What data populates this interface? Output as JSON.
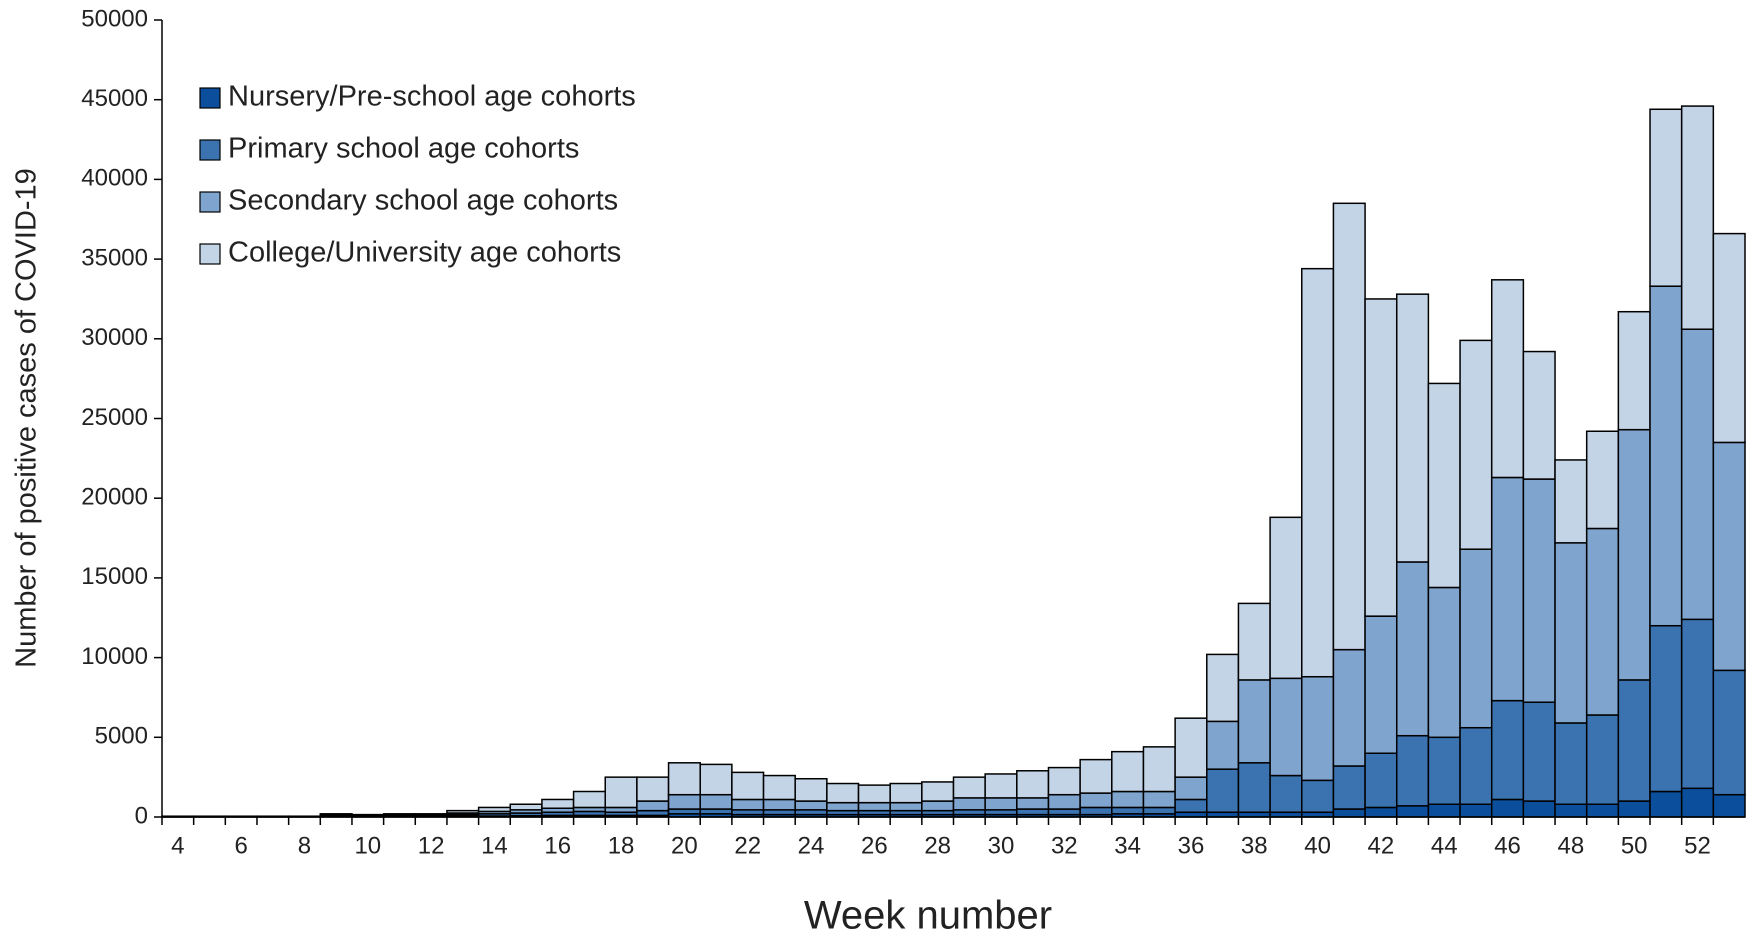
{
  "chart_data": {
    "type": "stacked_bar",
    "y_label": "Number of positive cases of COVID-19",
    "x_label": "Week number",
    "categories": [
      4,
      null,
      6,
      null,
      8,
      null,
      10,
      null,
      12,
      null,
      14,
      null,
      16,
      null,
      18,
      null,
      20,
      null,
      22,
      null,
      24,
      null,
      26,
      null,
      28,
      null,
      30,
      null,
      32,
      null,
      34,
      null,
      36,
      null,
      38,
      null,
      40,
      null,
      42,
      null,
      44,
      null,
      46,
      null,
      48,
      null,
      50,
      null,
      52,
      null
    ],
    "series": [
      {
        "name": "Nursery/Pre-school age cohorts",
        "color": "#0b4f9c",
        "values": [
          10,
          10,
          10,
          10,
          10,
          30,
          20,
          30,
          30,
          50,
          60,
          80,
          100,
          100,
          100,
          100,
          200,
          200,
          150,
          150,
          150,
          150,
          150,
          150,
          150,
          150,
          150,
          150,
          150,
          150,
          200,
          200,
          300,
          300,
          300,
          300,
          300,
          500,
          600,
          700,
          800,
          800,
          1100,
          1000,
          800,
          800,
          1000,
          1600,
          1800,
          1400
        ]
      },
      {
        "name": "Primary school age cohorts",
        "color": "#3b73b1",
        "values": [
          10,
          10,
          10,
          10,
          10,
          50,
          40,
          50,
          50,
          100,
          140,
          170,
          200,
          250,
          200,
          300,
          300,
          300,
          300,
          300,
          300,
          250,
          250,
          250,
          250,
          300,
          300,
          350,
          350,
          450,
          400,
          400,
          800,
          2700,
          3100,
          2300,
          2000,
          2700,
          3400,
          4400,
          4200,
          4800,
          6200,
          6200,
          5100,
          5600,
          7600,
          10400,
          10600,
          7800
        ]
      },
      {
        "name": "Secondary school age cohorts",
        "color": "#7fa4cd",
        "values": [
          10,
          10,
          10,
          10,
          10,
          50,
          40,
          60,
          60,
          100,
          150,
          200,
          250,
          250,
          300,
          600,
          900,
          900,
          650,
          650,
          550,
          500,
          500,
          500,
          600,
          750,
          750,
          700,
          900,
          900,
          1000,
          1000,
          1400,
          3000,
          5200,
          6100,
          6500,
          7300,
          8600,
          10900,
          9400,
          11200,
          14000,
          14000,
          11300,
          11700,
          15700,
          21300,
          18200,
          14300
        ]
      },
      {
        "name": "College/University age cohorts",
        "color": "#c3d4e7",
        "values": [
          20,
          20,
          20,
          20,
          20,
          70,
          50,
          60,
          60,
          150,
          250,
          350,
          550,
          1000,
          1900,
          1500,
          2000,
          1900,
          1700,
          1500,
          1400,
          1200,
          1100,
          1200,
          1200,
          1300,
          1500,
          1700,
          1700,
          2100,
          2500,
          2800,
          3700,
          4200,
          4800,
          10100,
          25600,
          28000,
          19900,
          16800,
          12800,
          13100,
          12400,
          8000,
          5200,
          6100,
          7400,
          11100,
          14000,
          13100
        ]
      }
    ],
    "ylim": [
      0,
      50000
    ],
    "yticks": [
      0,
      5000,
      10000,
      15000,
      20000,
      25000,
      30000,
      35000,
      40000,
      45000,
      50000
    ],
    "legend": "upper-left"
  }
}
